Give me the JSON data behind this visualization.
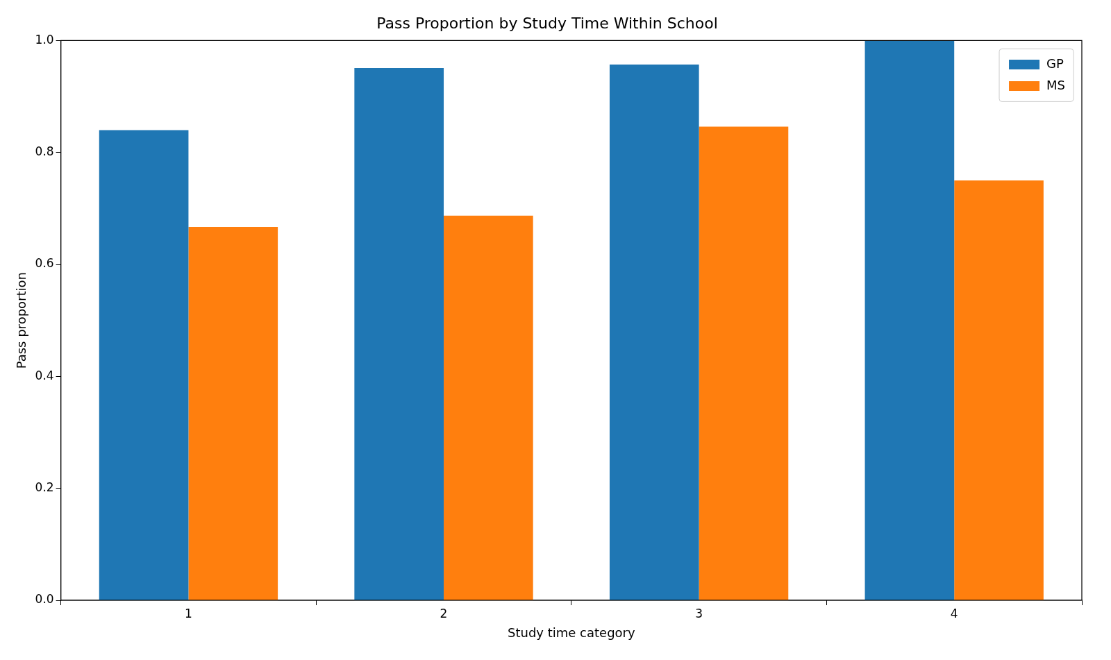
{
  "chart_data": {
    "type": "bar",
    "title": "Pass Proportion by Study Time Within School",
    "xlabel": "Study time category",
    "ylabel": "Pass proportion",
    "categories": [
      "1",
      "2",
      "3",
      "4"
    ],
    "series": [
      {
        "name": "GP",
        "color": "#1f77b4",
        "values": [
          0.84,
          0.951,
          0.957,
          1.0
        ]
      },
      {
        "name": "MS",
        "color": "#ff7f0e",
        "values": [
          0.667,
          0.687,
          0.846,
          0.75
        ]
      }
    ],
    "ylim": [
      0,
      1
    ],
    "yticks": [
      {
        "value": 0,
        "label": "0.0"
      },
      {
        "value": 0.2,
        "label": "0.2"
      },
      {
        "value": 0.4,
        "label": "0.4"
      },
      {
        "value": 0.6,
        "label": "0.6"
      },
      {
        "value": 0.8,
        "label": "0.8"
      },
      {
        "value": 1,
        "label": "1.0"
      }
    ],
    "grid": false,
    "legend": "top right"
  }
}
